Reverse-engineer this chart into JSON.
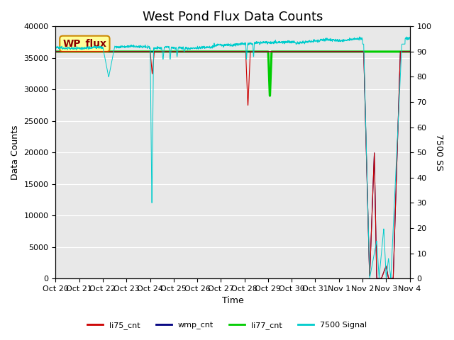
{
  "title": "West Pond Flux Data Counts",
  "ylabel_left": "Data Counts",
  "ylabel_right": "7500 SS",
  "xlabel": "Time",
  "ylim_left": [
    0,
    40000
  ],
  "ylim_right": [
    0,
    100
  ],
  "xtick_labels": [
    "Oct 20",
    "Oct 21",
    "Oct 22",
    "Oct 23",
    "Oct 24",
    "Oct 25",
    "Oct 26",
    "Oct 27",
    "Oct 28",
    "Oct 29",
    "Oct 30",
    "Oct 31",
    "Nov 1",
    "Nov 2",
    "Nov 3",
    "Nov 4"
  ],
  "bg_color": "#e8e8e8",
  "title_fontsize": 13,
  "annotation_text": "WP_flux",
  "annotation_box_color": "#ffff99",
  "annotation_box_edgecolor": "#cc8800",
  "li77_cnt_value": 36000,
  "li75_color": "#cc0000",
  "wmp_color": "#000080",
  "li77_color": "#00cc00",
  "signal7500_color": "#00cccc",
  "legend_items": [
    "li75_cnt",
    "wmp_cnt",
    "li77_cnt",
    "7500 Signal"
  ]
}
